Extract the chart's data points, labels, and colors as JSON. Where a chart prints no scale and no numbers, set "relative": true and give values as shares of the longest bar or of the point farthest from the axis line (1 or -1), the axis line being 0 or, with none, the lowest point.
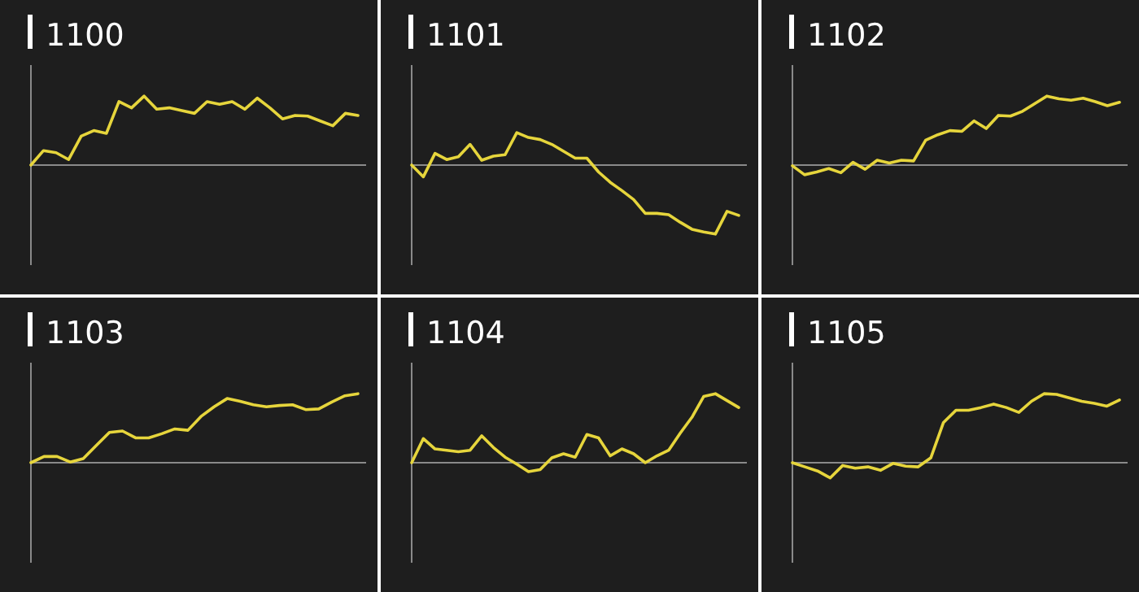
{
  "chart_data": [
    {
      "type": "line",
      "title": "1100",
      "relative": true,
      "color": "#e6d53c",
      "categories": [
        null,
        null,
        null,
        null,
        null,
        null,
        null,
        null,
        null,
        null,
        null,
        null,
        null,
        null,
        null,
        null,
        null,
        null,
        null,
        null,
        null,
        null,
        null,
        null,
        null,
        null,
        null
      ],
      "values": [
        0,
        0.21,
        0.18,
        0.08,
        0.42,
        0.5,
        0.46,
        0.92,
        0.83,
        1,
        0.81,
        0.83,
        0.79,
        0.75,
        0.92,
        0.88,
        0.92,
        0.81,
        0.97,
        0.83,
        0.67,
        0.72,
        0.71,
        0.64,
        0.57,
        0.75,
        0.72
      ]
    },
    {
      "type": "line",
      "title": "1101",
      "relative": true,
      "color": "#e6d53c",
      "categories": [
        null,
        null,
        null,
        null,
        null,
        null,
        null,
        null,
        null,
        null,
        null,
        null,
        null,
        null,
        null,
        null,
        null,
        null,
        null,
        null,
        null,
        null,
        null,
        null,
        null,
        null,
        null,
        null,
        null
      ],
      "values": [
        0,
        -0.17,
        0.17,
        0.08,
        0.12,
        0.3,
        0.07,
        0.13,
        0.15,
        0.47,
        0.4,
        0.37,
        0.3,
        0.2,
        0.1,
        0.1,
        -0.1,
        -0.25,
        -0.37,
        -0.5,
        -0.7,
        -0.7,
        -0.72,
        -0.83,
        -0.93,
        -0.97,
        -1,
        -0.67,
        -0.73
      ]
    },
    {
      "type": "line",
      "title": "1102",
      "relative": true,
      "color": "#e6d53c",
      "categories": [
        null,
        null,
        null,
        null,
        null,
        null,
        null,
        null,
        null,
        null,
        null,
        null,
        null,
        null,
        null,
        null,
        null,
        null,
        null,
        null,
        null,
        null,
        null,
        null,
        null,
        null,
        null,
        null
      ],
      "values": [
        -0.01,
        -0.14,
        -0.1,
        -0.05,
        -0.11,
        0.04,
        -0.06,
        0.07,
        0.03,
        0.07,
        0.06,
        0.36,
        0.44,
        0.5,
        0.49,
        0.64,
        0.53,
        0.72,
        0.71,
        0.78,
        0.89,
        1,
        0.96,
        0.94,
        0.97,
        0.92,
        0.86,
        0.91
      ]
    },
    {
      "type": "line",
      "title": "1103",
      "relative": true,
      "color": "#e6d53c",
      "categories": [
        null,
        null,
        null,
        null,
        null,
        null,
        null,
        null,
        null,
        null,
        null,
        null,
        null,
        null,
        null,
        null,
        null,
        null,
        null,
        null,
        null,
        null,
        null,
        null,
        null,
        null
      ],
      "values": [
        0,
        0.09,
        0.09,
        0.01,
        0.06,
        0.25,
        0.44,
        0.46,
        0.36,
        0.36,
        0.42,
        0.49,
        0.47,
        0.67,
        0.81,
        0.93,
        0.89,
        0.84,
        0.81,
        0.83,
        0.84,
        0.77,
        0.78,
        0.88,
        0.97,
        1
      ]
    },
    {
      "type": "line",
      "title": "1104",
      "relative": true,
      "color": "#e6d53c",
      "categories": [
        null,
        null,
        null,
        null,
        null,
        null,
        null,
        null,
        null,
        null,
        null,
        null,
        null,
        null,
        null,
        null,
        null,
        null,
        null,
        null,
        null,
        null,
        null,
        null,
        null,
        null,
        null,
        null,
        null
      ],
      "values": [
        0,
        0.35,
        0.2,
        0.18,
        0.16,
        0.18,
        0.39,
        0.22,
        0.08,
        -0.02,
        -0.13,
        -0.1,
        0.07,
        0.13,
        0.08,
        0.41,
        0.36,
        0.1,
        0.2,
        0.13,
        0,
        0.1,
        0.18,
        0.43,
        0.66,
        0.96,
        1,
        0.9,
        0.8
      ]
    },
    {
      "type": "line",
      "title": "1105",
      "relative": true,
      "color": "#e6d53c",
      "categories": [
        null,
        null,
        null,
        null,
        null,
        null,
        null,
        null,
        null,
        null,
        null,
        null,
        null,
        null,
        null,
        null,
        null,
        null,
        null,
        null,
        null,
        null,
        null,
        null,
        null,
        null,
        null
      ],
      "values": [
        0,
        -0.06,
        -0.12,
        -0.22,
        -0.04,
        -0.08,
        -0.06,
        -0.11,
        -0.01,
        -0.05,
        -0.06,
        0.07,
        0.58,
        0.76,
        0.76,
        0.8,
        0.85,
        0.8,
        0.73,
        0.89,
        1,
        0.99,
        0.94,
        0.89,
        0.86,
        0.82,
        0.91
      ]
    }
  ]
}
